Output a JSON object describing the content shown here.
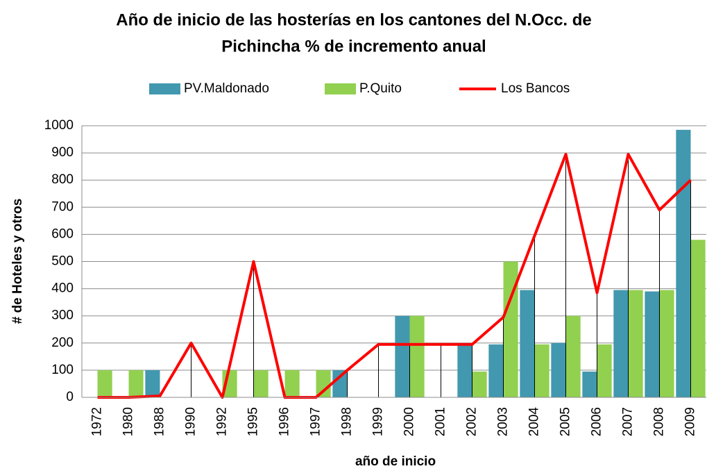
{
  "chart_data": {
    "type": "bar_line",
    "title": [
      "Año de inicio de las hosterías en los cantones del N.Occ. de",
      "Pichincha  % de incremento anual"
    ],
    "x_label": "año de inicio",
    "y_label": "# de Hoteles y otros",
    "categories": [
      "1972",
      "1980",
      "1988",
      "1990",
      "1992",
      "1995",
      "1996",
      "1997",
      "1998",
      "1999",
      "2000",
      "2001",
      "2002",
      "2003",
      "2004",
      "2005",
      "2006",
      "2007",
      "2008",
      "2009"
    ],
    "series": [
      {
        "name": "PV.Maldonado",
        "type": "bar",
        "color": "#4198af",
        "values": [
          0,
          0,
          100,
          0,
          0,
          0,
          0,
          0,
          100,
          0,
          300,
          0,
          200,
          195,
          395,
          200,
          95,
          395,
          390,
          985
        ]
      },
      {
        "name": "P.Quito",
        "type": "bar",
        "color": "#92d050",
        "values": [
          100,
          100,
          0,
          0,
          100,
          100,
          100,
          100,
          0,
          0,
          300,
          0,
          95,
          500,
          195,
          300,
          195,
          395,
          395,
          580
        ]
      },
      {
        "name": "Los Bancos",
        "type": "line",
        "color": "#ff0000",
        "values": [
          0,
          0,
          5,
          200,
          0,
          500,
          0,
          0,
          100,
          195,
          195,
          195,
          195,
          295,
          595,
          895,
          385,
          895,
          690,
          800
        ]
      }
    ],
    "ylim": [
      0,
      1000
    ],
    "yticks": [
      0,
      100,
      200,
      300,
      400,
      500,
      600,
      700,
      800,
      900,
      1000
    ],
    "grid": true,
    "drop_lines": true,
    "legend": "top"
  }
}
